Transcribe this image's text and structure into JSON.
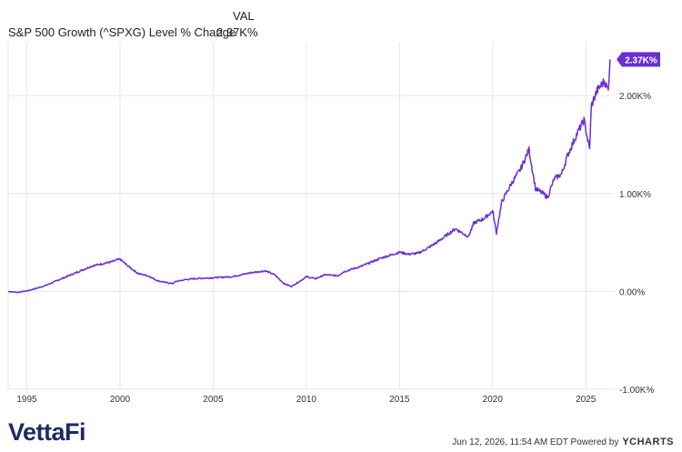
{
  "header": {
    "val_label": "VAL",
    "series_name": "S&P 500 Growth (^SPXG) Level % Change",
    "series_value": "2.37K%"
  },
  "footer": {
    "brand": "VettaFi",
    "timestamp": "Jun 12, 2026, 11:54 AM EDT Powered by",
    "powered_brand": "YCHARTS"
  },
  "colors": {
    "line": "#6a2fd0",
    "grid": "#e6e6e6",
    "axis_text": "#333333",
    "badge_bg": "#6a2fd0",
    "badge_text": "#ffffff"
  },
  "chart_data": {
    "type": "line",
    "title": "",
    "xlabel": "",
    "ylabel": "",
    "x_ticks": [
      "1995",
      "2000",
      "2005",
      "2010",
      "2015",
      "2020",
      "2025"
    ],
    "x_tick_years": [
      1995,
      2000,
      2005,
      2010,
      2015,
      2020,
      2025
    ],
    "y_ticks": [
      0,
      1000,
      2000,
      -1000
    ],
    "y_tick_labels": [
      "0.00%",
      "1.00K%",
      "2.00K%",
      "-1.00K%"
    ],
    "xlim": [
      1994.0,
      2026.5
    ],
    "ylim": [
      -1000,
      2550
    ],
    "grid": true,
    "end_label": "2.37K%",
    "series": [
      {
        "name": "S&P 500 Growth (^SPXG) Level % Change",
        "x": [
          1994.0,
          1994.5,
          1995.0,
          1995.5,
          1996.0,
          1996.5,
          1997.0,
          1997.5,
          1998.0,
          1998.5,
          1999.0,
          1999.5,
          2000.0,
          2000.3,
          2000.7,
          2001.0,
          2001.5,
          2002.0,
          2002.5,
          2002.8,
          2003.0,
          2003.5,
          2004.0,
          2005.0,
          2006.0,
          2007.0,
          2007.8,
          2008.3,
          2008.8,
          2009.2,
          2009.7,
          2010.0,
          2010.5,
          2011.0,
          2011.7,
          2012.0,
          2013.0,
          2014.0,
          2014.5,
          2015.0,
          2015.5,
          2016.0,
          2016.5,
          2017.0,
          2017.5,
          2018.0,
          2018.7,
          2019.0,
          2019.5,
          2020.0,
          2020.2,
          2020.5,
          2021.0,
          2021.5,
          2021.95,
          2022.3,
          2022.7,
          2022.95,
          2023.3,
          2023.7,
          2024.0,
          2024.5,
          2024.9,
          2025.2,
          2025.3,
          2025.6,
          2026.0,
          2026.2,
          2026.3
        ],
        "values": [
          0,
          -10,
          5,
          30,
          60,
          100,
          140,
          180,
          220,
          260,
          280,
          300,
          330,
          280,
          220,
          180,
          160,
          110,
          90,
          80,
          100,
          120,
          130,
          140,
          150,
          190,
          210,
          170,
          80,
          50,
          110,
          150,
          130,
          170,
          160,
          200,
          260,
          340,
          370,
          400,
          380,
          390,
          440,
          500,
          570,
          640,
          560,
          700,
          740,
          820,
          600,
          920,
          1100,
          1250,
          1450,
          1050,
          1000,
          960,
          1150,
          1200,
          1380,
          1600,
          1750,
          1450,
          1900,
          2050,
          2150,
          2050,
          2370
        ]
      }
    ]
  }
}
